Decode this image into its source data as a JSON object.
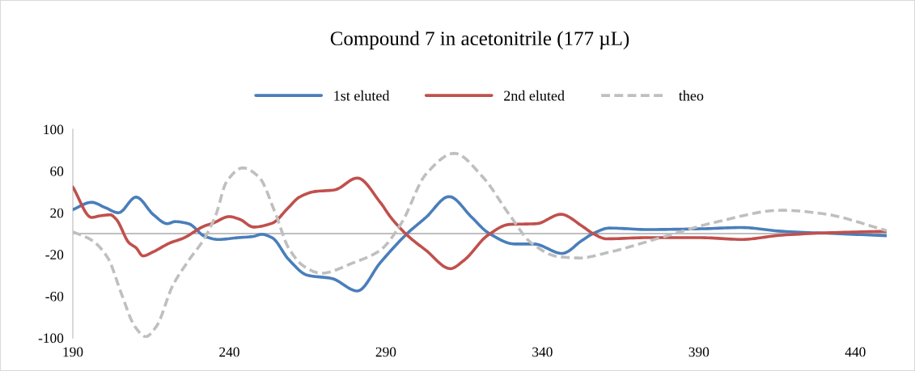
{
  "chart_data": {
    "type": "line",
    "title": "Compound 7 in acetonitrile (177 µL)",
    "xlim": [
      190,
      450
    ],
    "xticks": [
      190,
      240,
      290,
      340,
      390,
      440
    ],
    "ylim": [
      -100,
      100
    ],
    "yticks": [
      -100,
      -60,
      -20,
      20,
      60,
      100
    ],
    "grid": false,
    "legend": "top",
    "marker": "none",
    "series": [
      {
        "name": "1st eluted",
        "color": "#4a7ebb",
        "line_style": "solid",
        "x": [
          190,
          196,
          200.3,
          204.6,
          210.2,
          215.8,
          220.2,
          222.7,
          227,
          232.2,
          236.5,
          242.5,
          247.7,
          250.3,
          253.7,
          258.9,
          265,
          272.7,
          280.9,
          288.2,
          296.8,
          302.8,
          310.2,
          317.5,
          322.6,
          331.3,
          337.3,
          346.3,
          352.8,
          356.2,
          361.4,
          373.5,
          390.7,
          403.6,
          416.5,
          433.7,
          450
        ],
        "values": [
          23,
          30,
          25,
          20,
          35,
          18,
          9.5,
          11.5,
          9.5,
          -2.7,
          -5.6,
          -4,
          -2.7,
          -0.7,
          -4,
          -24.6,
          -40,
          -43,
          -55,
          -28,
          0,
          15.5,
          35.5,
          15.5,
          1,
          -10,
          -10,
          -19,
          -6.3,
          0,
          5.3,
          3.9,
          4.6,
          5.8,
          2.2,
          0,
          -2
        ]
      },
      {
        "name": "2nd eluted",
        "color": "#c0504d",
        "line_style": "solid",
        "x": [
          190,
          196,
          198.6,
          202,
          203.8,
          208,
          210.2,
          212.4,
          215.8,
          221,
          225.3,
          232.2,
          234.8,
          239.9,
          243.4,
          247.7,
          253.7,
          258.9,
          262.4,
          267.5,
          273.5,
          280.9,
          288.2,
          291.6,
          296.8,
          302.8,
          310.6,
          314.9,
          322.6,
          329.5,
          338.1,
          345.9,
          352.8,
          356.2,
          360.5,
          373.5,
          390.7,
          403.6,
          416.5,
          433.7,
          450
        ],
        "values": [
          44.7,
          15.5,
          17,
          18,
          14,
          -9,
          -13.6,
          -21.4,
          -17.3,
          -9,
          -4.4,
          7.5,
          10,
          16.3,
          13.6,
          6.3,
          10,
          25,
          35,
          40.4,
          41.8,
          53.3,
          30,
          15.5,
          -1.5,
          -16,
          -33.6,
          -25.8,
          -1.5,
          8.8,
          9.5,
          18.5,
          7,
          0,
          -5,
          -3.9,
          -3.9,
          -5.6,
          -1.5,
          1,
          2.2
        ]
      },
      {
        "name": "theo",
        "color": "#bfbfbf",
        "line_style": "dashed",
        "x": [
          190,
          196,
          201.2,
          205.5,
          209.8,
          213.3,
          216.7,
          221.9,
          227,
          232.2,
          235.7,
          239.1,
          244.3,
          249.4,
          254.6,
          258.9,
          264.1,
          269.3,
          279.6,
          288.2,
          295.1,
          302.8,
          311.9,
          320.9,
          329.5,
          336.4,
          345,
          351.9,
          360.5,
          377.8,
          395,
          416.5,
          429.4,
          450
        ],
        "values": [
          1.7,
          -6.3,
          -23.4,
          -57.4,
          -89,
          -98.8,
          -89,
          -50,
          -25.8,
          -3.9,
          18,
          49.6,
          63,
          54.5,
          20.4,
          -13.6,
          -31.9,
          -38,
          -28,
          -16,
          10.7,
          57,
          77,
          54.5,
          18,
          -8.8,
          -22,
          -23.4,
          -18.5,
          -3.9,
          10.7,
          22.4,
          19.2,
          2.9
        ]
      }
    ]
  }
}
